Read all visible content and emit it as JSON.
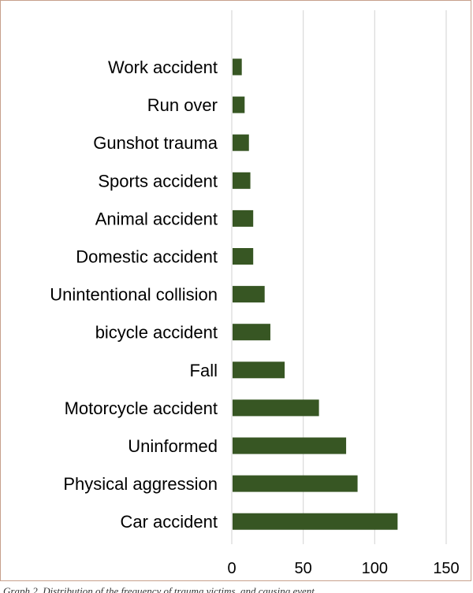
{
  "chart_data": {
    "type": "bar",
    "orientation": "horizontal",
    "categories": [
      "Work accident",
      "Run over",
      "Gunshot trauma",
      "Sports accident",
      "Animal accident",
      "Domestic accident",
      "Unintentional collision",
      "bicycle accident",
      "Fall",
      "Motorcycle accident",
      "Uninformed",
      "Physical aggression",
      "Car accident"
    ],
    "values": [
      7,
      9,
      12,
      13,
      15,
      15,
      23,
      27,
      37,
      61,
      80,
      88,
      116
    ],
    "xlim": [
      0,
      150
    ],
    "xticks": [
      "0",
      "50",
      "100",
      "150"
    ],
    "grid": "vertical",
    "bar_color": "#375623"
  },
  "caption": "Graph 2. Distribution of the frequency of trauma victims, and causing event"
}
